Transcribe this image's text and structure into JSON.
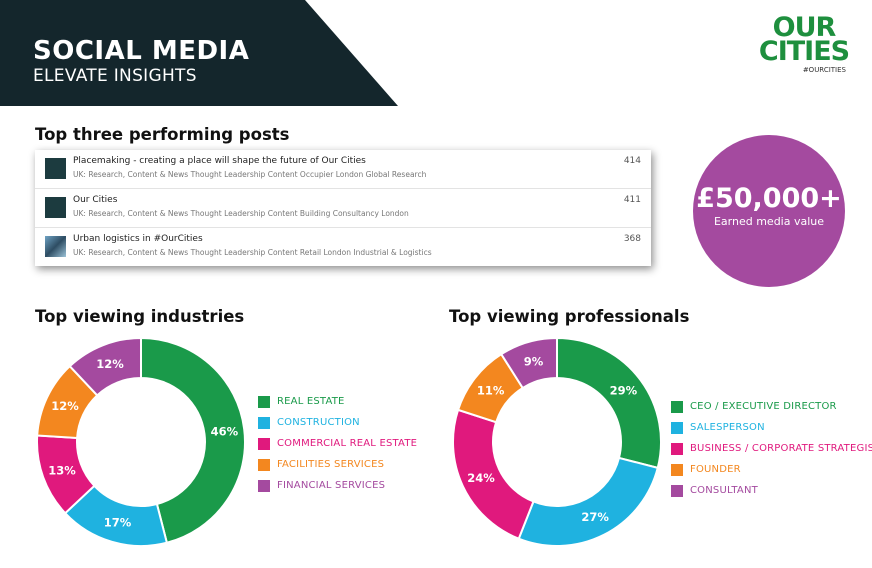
{
  "header": {
    "title": "SOCIAL MEDIA",
    "subtitle": "ELEVATE INSIGHTS"
  },
  "logo": {
    "line1": "OUR",
    "line2": "CITIES",
    "tag": "#OURCITIES"
  },
  "top_posts": {
    "heading": "Top three performing posts",
    "posts": [
      {
        "title": "Placemaking - creating a place will shape the future of Our Cities",
        "tags": "UK: Research, Content & News Thought Leadership Content Occupier London Global Research",
        "count": "414"
      },
      {
        "title": "Our Cities",
        "tags": "UK: Research, Content & News Thought Leadership Content Building Consultancy London",
        "count": "411"
      },
      {
        "title": "Urban logistics in #OurCities",
        "tags": "UK: Research, Content & News Thought Leadership Content Retail London Industrial & Logistics",
        "count": "368"
      }
    ]
  },
  "media_value": {
    "value": "£50,000+",
    "label": "Earned media value"
  },
  "colors": {
    "banner": "#14262c",
    "green": "#1a9a4a",
    "blue": "#1fb2e0",
    "magenta": "#e0197d",
    "orange": "#f3871f",
    "purple": "#a44a9f"
  },
  "chart_data": [
    {
      "type": "pie",
      "title": "Top viewing industries",
      "series": [
        {
          "name": "REAL ESTATE",
          "value": 46,
          "color": "#1a9a4a"
        },
        {
          "name": "CONSTRUCTION",
          "value": 17,
          "color": "#1fb2e0"
        },
        {
          "name": "COMMERCIAL REAL ESTATE",
          "value": 13,
          "color": "#e0197d"
        },
        {
          "name": "FACILITIES SERVICES",
          "value": 12,
          "color": "#f3871f"
        },
        {
          "name": "FINANCIAL SERVICES",
          "value": 12,
          "color": "#a44a9f"
        }
      ],
      "legend": "right"
    },
    {
      "type": "pie",
      "title": "Top viewing professionals",
      "series": [
        {
          "name": "CEO / EXECUTIVE DIRECTOR",
          "value": 29,
          "color": "#1a9a4a"
        },
        {
          "name": "SALESPERSON",
          "value": 27,
          "color": "#1fb2e0"
        },
        {
          "name": "BUSINESS / CORPORATE STRATEGIST",
          "value": 24,
          "color": "#e0197d"
        },
        {
          "name": "FOUNDER",
          "value": 11,
          "color": "#f3871f"
        },
        {
          "name": "CONSULTANT",
          "value": 9,
          "color": "#a44a9f"
        }
      ],
      "legend": "right"
    }
  ]
}
